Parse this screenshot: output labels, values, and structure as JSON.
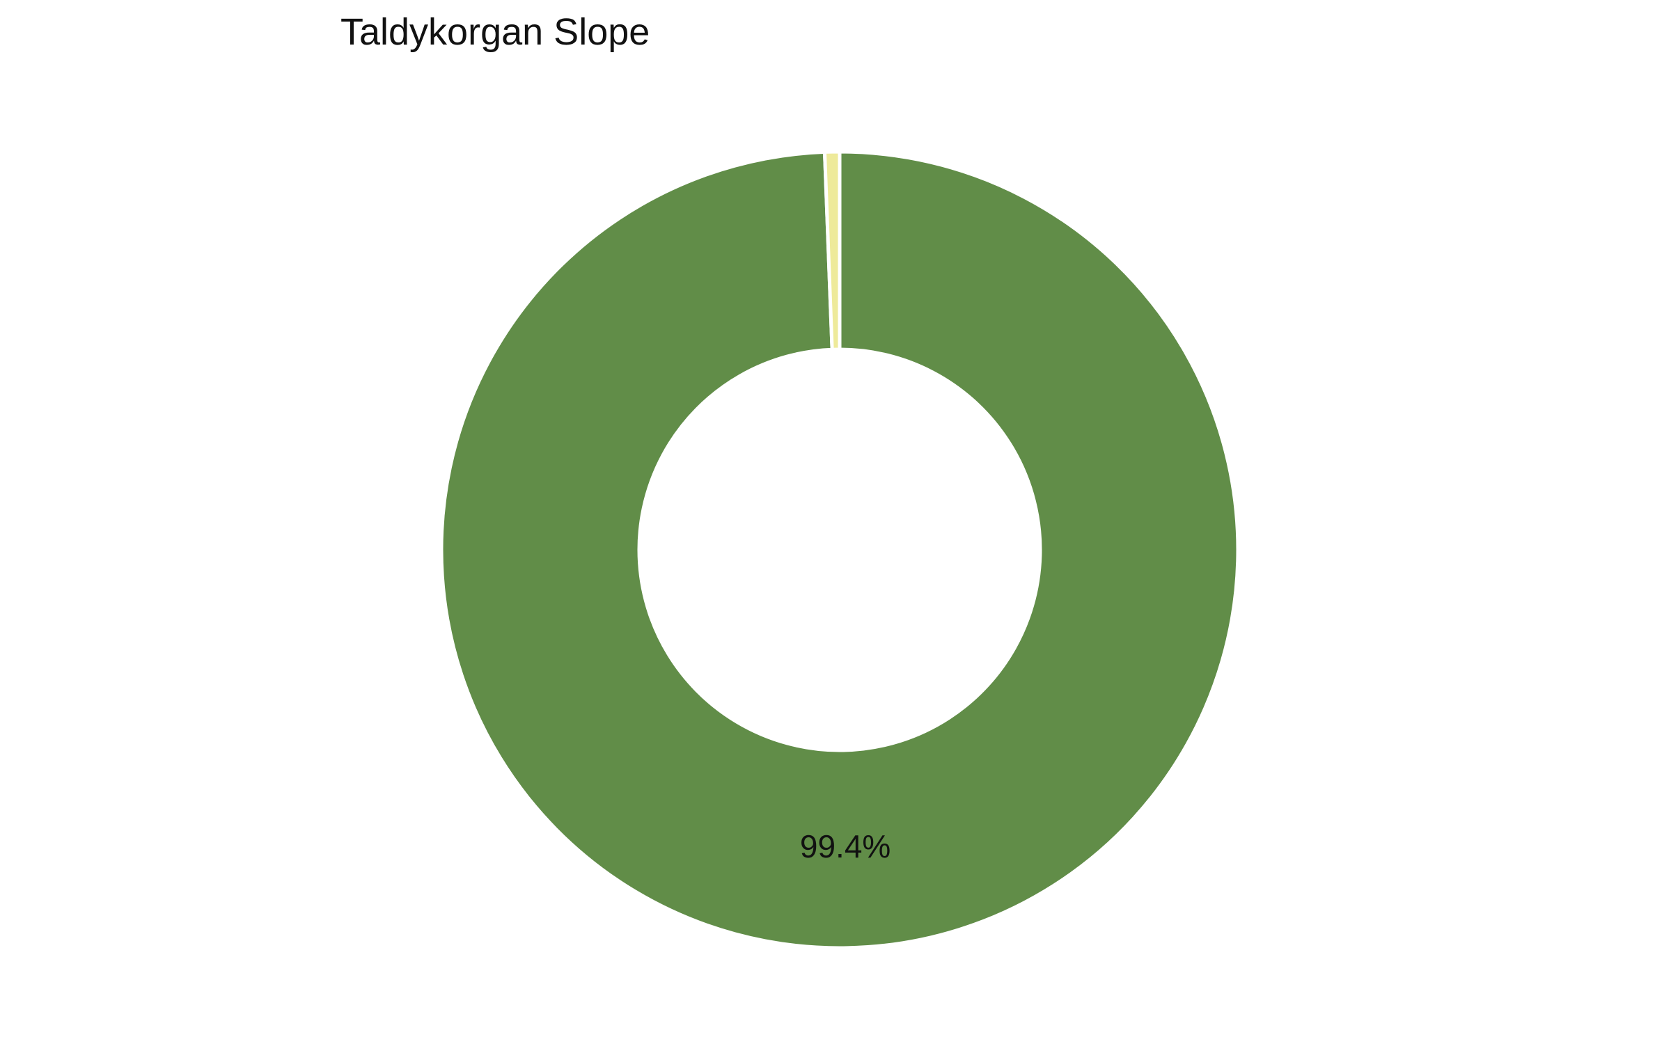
{
  "chart_data": {
    "type": "pie",
    "title": "Taldykorgan Slope",
    "hole": true,
    "categories": [
      "",
      ""
    ],
    "values": [
      99.4,
      0.6
    ],
    "labels": [
      "99.4%",
      ""
    ],
    "colors": [
      "#618d48",
      "#eeea9a"
    ],
    "slice_border": "#ffffff",
    "start_angle_deg": 0,
    "direction": "clockwise",
    "legend": "none"
  }
}
